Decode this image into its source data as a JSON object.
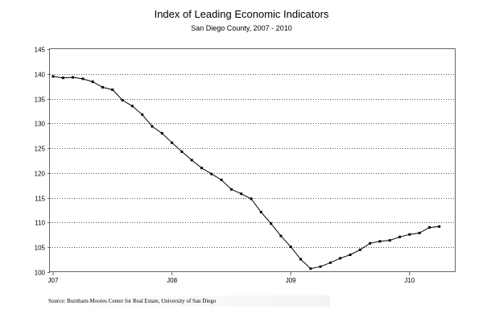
{
  "chart_data": {
    "type": "line",
    "title": "Index of Leading Economic Indicators",
    "subtitle": "San Diego County, 2007 - 2010",
    "xlabel": "",
    "ylabel": "",
    "ylim": [
      100,
      145
    ],
    "yticks": [
      100,
      105,
      110,
      115,
      120,
      125,
      130,
      135,
      140,
      145
    ],
    "xticks": [
      {
        "label": "J07",
        "index": 0
      },
      {
        "label": "J08",
        "index": 12
      },
      {
        "label": "J09",
        "index": 24
      },
      {
        "label": "J10",
        "index": 36
      }
    ],
    "grid": "horizontal dotted",
    "line_color": "#000000",
    "series": [
      {
        "values": [
          139.5,
          139.2,
          139.3,
          139.0,
          138.4,
          137.3,
          136.8,
          134.7,
          133.5,
          131.8,
          129.4,
          128.0,
          126.1,
          124.3,
          122.6,
          121.0,
          119.8,
          118.6,
          116.7,
          115.8,
          114.8,
          112.1,
          109.8,
          107.3,
          105.1,
          102.6,
          100.7,
          101.1,
          101.9,
          102.8,
          103.5,
          104.5,
          105.8,
          106.2,
          106.4,
          107.1,
          107.6,
          107.9,
          109.0,
          109.2
        ]
      }
    ]
  },
  "source": "Source:  Burnham-Moores Center for Real Estate, University of San Diego"
}
